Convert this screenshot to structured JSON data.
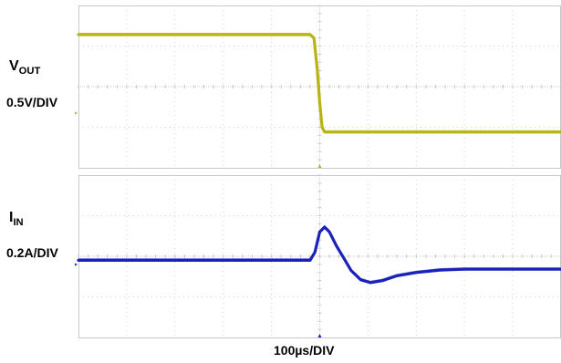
{
  "chart_data": [
    {
      "type": "line",
      "name": "vout-trace",
      "label_main": "V",
      "label_sub": "OUT",
      "scale_label": "0.5V/DIV",
      "color": "#b8b414",
      "ylim": [
        0,
        4
      ],
      "x_divisions": 10,
      "y_divisions": 4,
      "x": [
        0,
        4.8,
        4.88,
        4.95,
        5.0,
        5.05,
        5.1,
        10
      ],
      "y": [
        3.28,
        3.28,
        3.2,
        2.4,
        1.6,
        1.0,
        0.88,
        0.88
      ]
    },
    {
      "type": "line",
      "name": "iin-trace",
      "label_main": "I",
      "label_sub": "IN",
      "scale_label": "0.2A/DIV",
      "color": "#1a22b8",
      "ylim": [
        0,
        4
      ],
      "x_divisions": 10,
      "y_divisions": 4,
      "x": [
        0,
        4.8,
        4.9,
        5.0,
        5.1,
        5.2,
        5.35,
        5.5,
        5.65,
        5.85,
        6.05,
        6.3,
        6.6,
        7.0,
        7.5,
        8.0,
        10
      ],
      "y": [
        1.9,
        1.9,
        2.1,
        2.6,
        2.72,
        2.6,
        2.25,
        1.95,
        1.65,
        1.42,
        1.35,
        1.4,
        1.52,
        1.6,
        1.66,
        1.68,
        1.68
      ]
    }
  ],
  "time_scale_label": "100µs/DIV",
  "colors": {
    "grid": "#c8c8c8",
    "grid_dots": "#d2d2d2",
    "trigger_marker": "#b8b414"
  }
}
